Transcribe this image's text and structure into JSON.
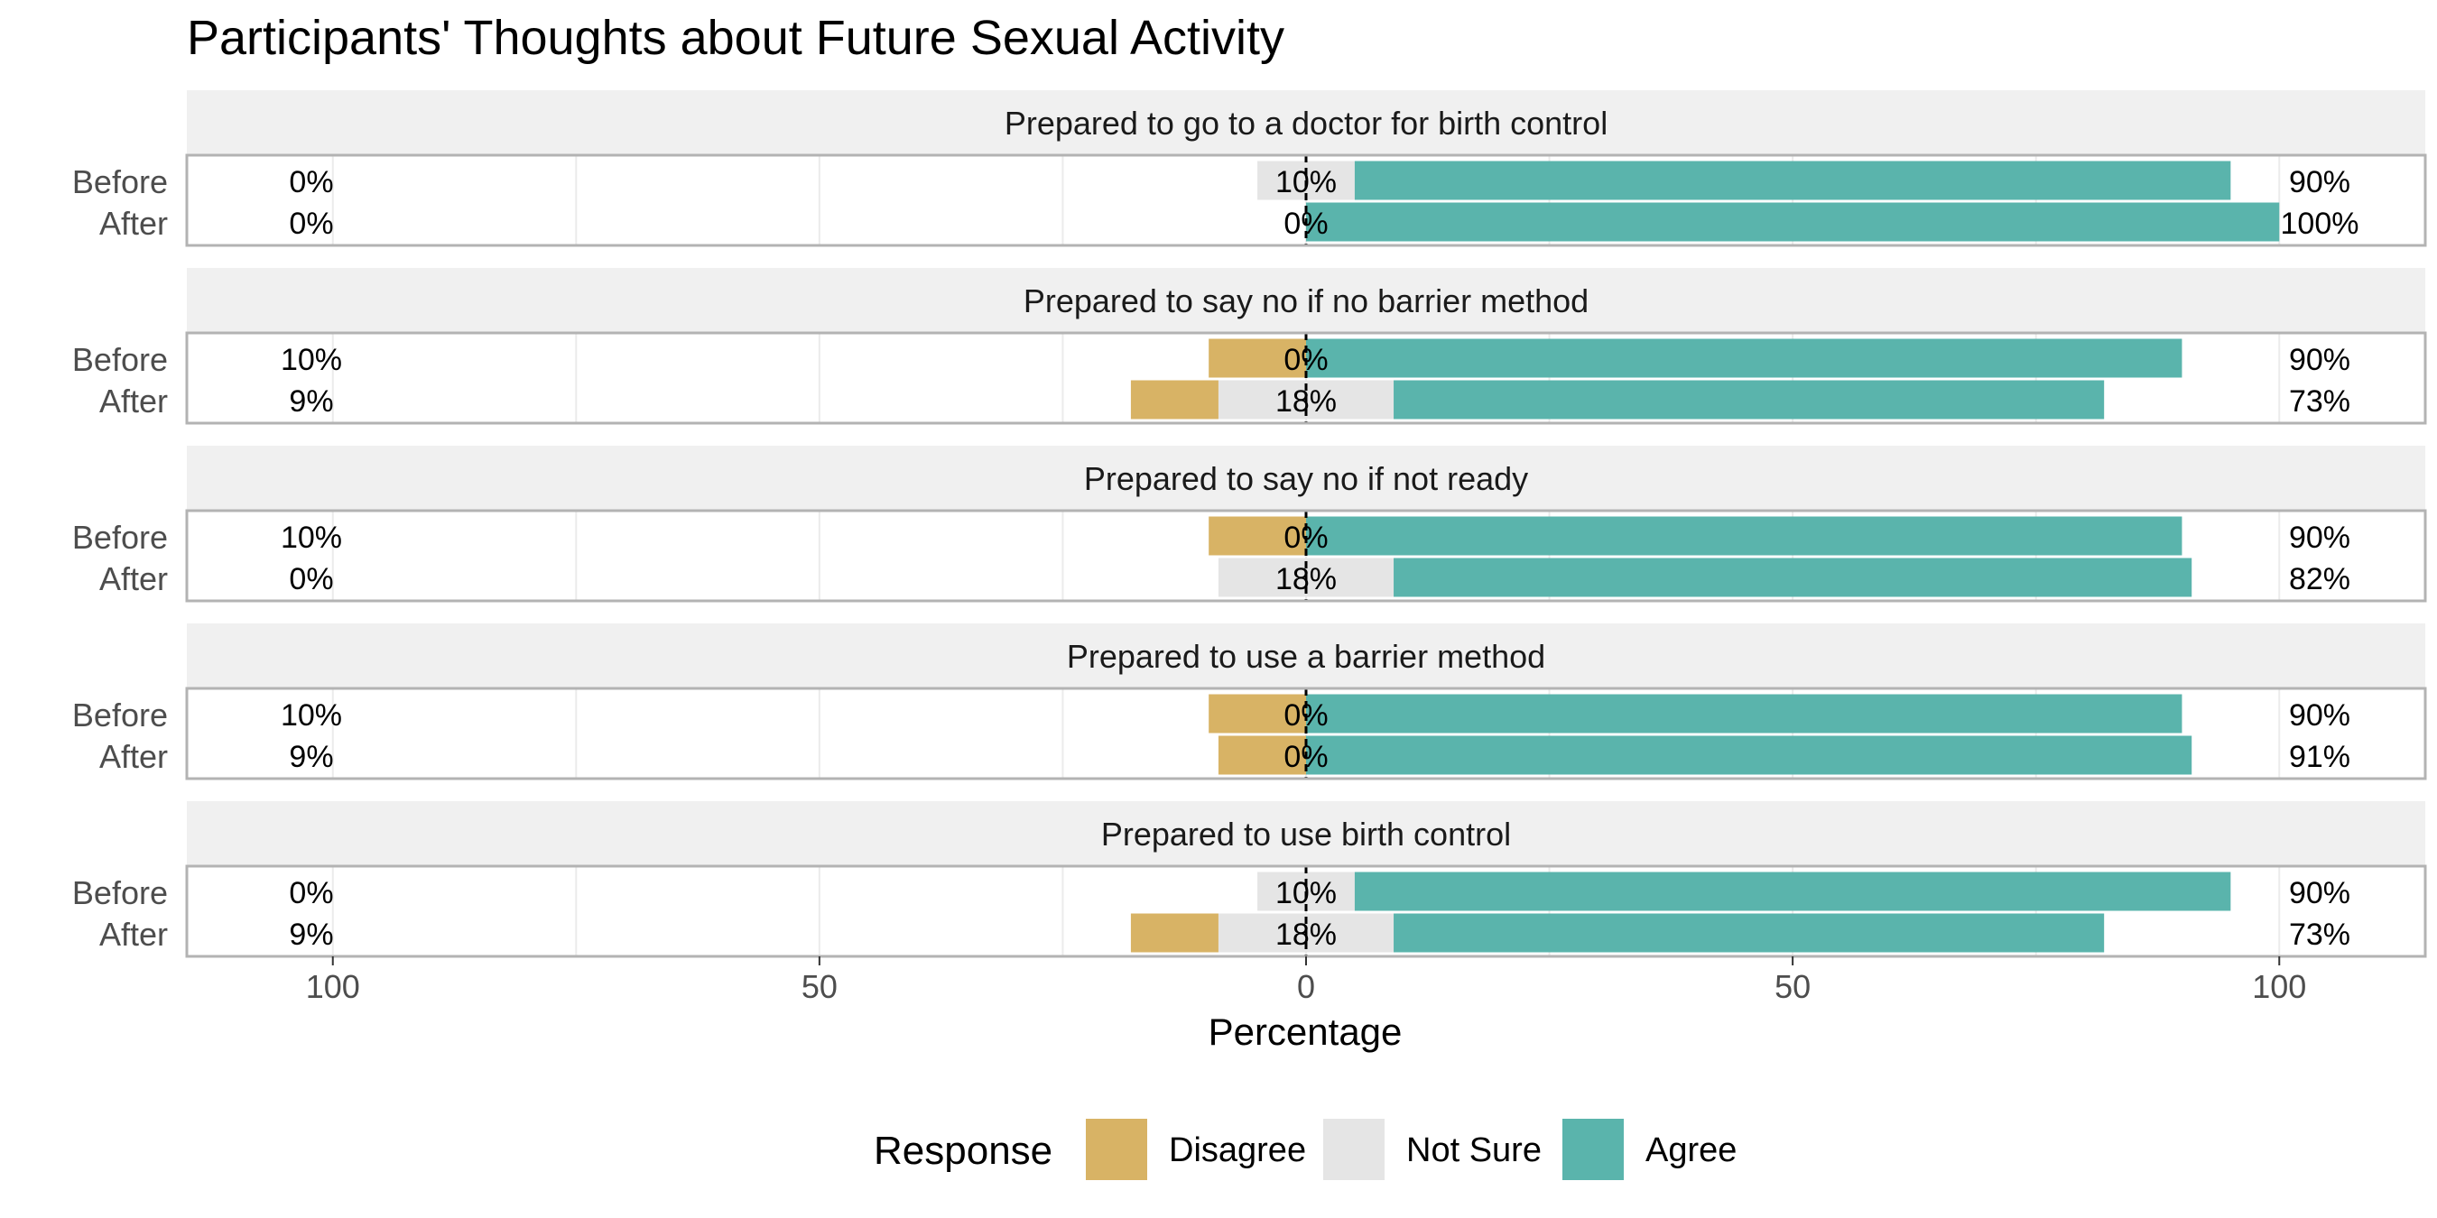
{
  "chart_data": {
    "type": "bar",
    "orientation": "horizontal",
    "stacked": "diverging",
    "title": "Participants' Thoughts about Future Sexual Activity",
    "xlabel": "Percentage",
    "ylabel": "",
    "xlim": [
      -115,
      115
    ],
    "x_ticks": [
      -100,
      -50,
      0,
      50,
      100
    ],
    "x_tick_labels": [
      "100",
      "50",
      "0",
      "50",
      "100"
    ],
    "grid": true,
    "legend": {
      "title": "Response",
      "position": "bottom",
      "entries": [
        "Disagree",
        "Not Sure",
        "Agree"
      ]
    },
    "colors": {
      "Disagree": "#D8B365",
      "Not Sure": "#E5E5E5",
      "Agree": "#5AB4AC",
      "strip_bg": "#F0F0F0",
      "panel_border": "#B3B3B3",
      "grid": "#EBEBEB",
      "zero_line": "#000000"
    },
    "categories": [
      "Before",
      "After"
    ],
    "panels": [
      {
        "title": "Prepared to go to a doctor for birth control",
        "rows": [
          {
            "label": "Before",
            "Disagree": 0,
            "Not Sure": 10,
            "Agree": 90,
            "left_label": "0%",
            "center_label": "10%",
            "right_label": "90%"
          },
          {
            "label": "After",
            "Disagree": 0,
            "Not Sure": 0,
            "Agree": 100,
            "left_label": "0%",
            "center_label": "0%",
            "right_label": "100%"
          }
        ]
      },
      {
        "title": "Prepared to say no if no barrier method",
        "rows": [
          {
            "label": "Before",
            "Disagree": 10,
            "Not Sure": 0,
            "Agree": 90,
            "left_label": "10%",
            "center_label": "0%",
            "right_label": "90%"
          },
          {
            "label": "After",
            "Disagree": 9,
            "Not Sure": 18,
            "Agree": 73,
            "left_label": "9%",
            "center_label": "18%",
            "right_label": "73%"
          }
        ]
      },
      {
        "title": "Prepared to say no if not ready",
        "rows": [
          {
            "label": "Before",
            "Disagree": 10,
            "Not Sure": 0,
            "Agree": 90,
            "left_label": "10%",
            "center_label": "0%",
            "right_label": "90%"
          },
          {
            "label": "After",
            "Disagree": 0,
            "Not Sure": 18,
            "Agree": 82,
            "left_label": "0%",
            "center_label": "18%",
            "right_label": "82%"
          }
        ]
      },
      {
        "title": "Prepared to use a barrier method",
        "rows": [
          {
            "label": "Before",
            "Disagree": 10,
            "Not Sure": 0,
            "Agree": 90,
            "left_label": "10%",
            "center_label": "0%",
            "right_label": "90%"
          },
          {
            "label": "After",
            "Disagree": 9,
            "Not Sure": 0,
            "Agree": 91,
            "left_label": "9%",
            "center_label": "0%",
            "right_label": "91%"
          }
        ]
      },
      {
        "title": "Prepared to use birth control",
        "rows": [
          {
            "label": "Before",
            "Disagree": 0,
            "Not Sure": 10,
            "Agree": 90,
            "left_label": "0%",
            "center_label": "10%",
            "right_label": "90%"
          },
          {
            "label": "After",
            "Disagree": 9,
            "Not Sure": 18,
            "Agree": 73,
            "left_label": "9%",
            "center_label": "18%",
            "right_label": "73%"
          }
        ]
      }
    ]
  }
}
